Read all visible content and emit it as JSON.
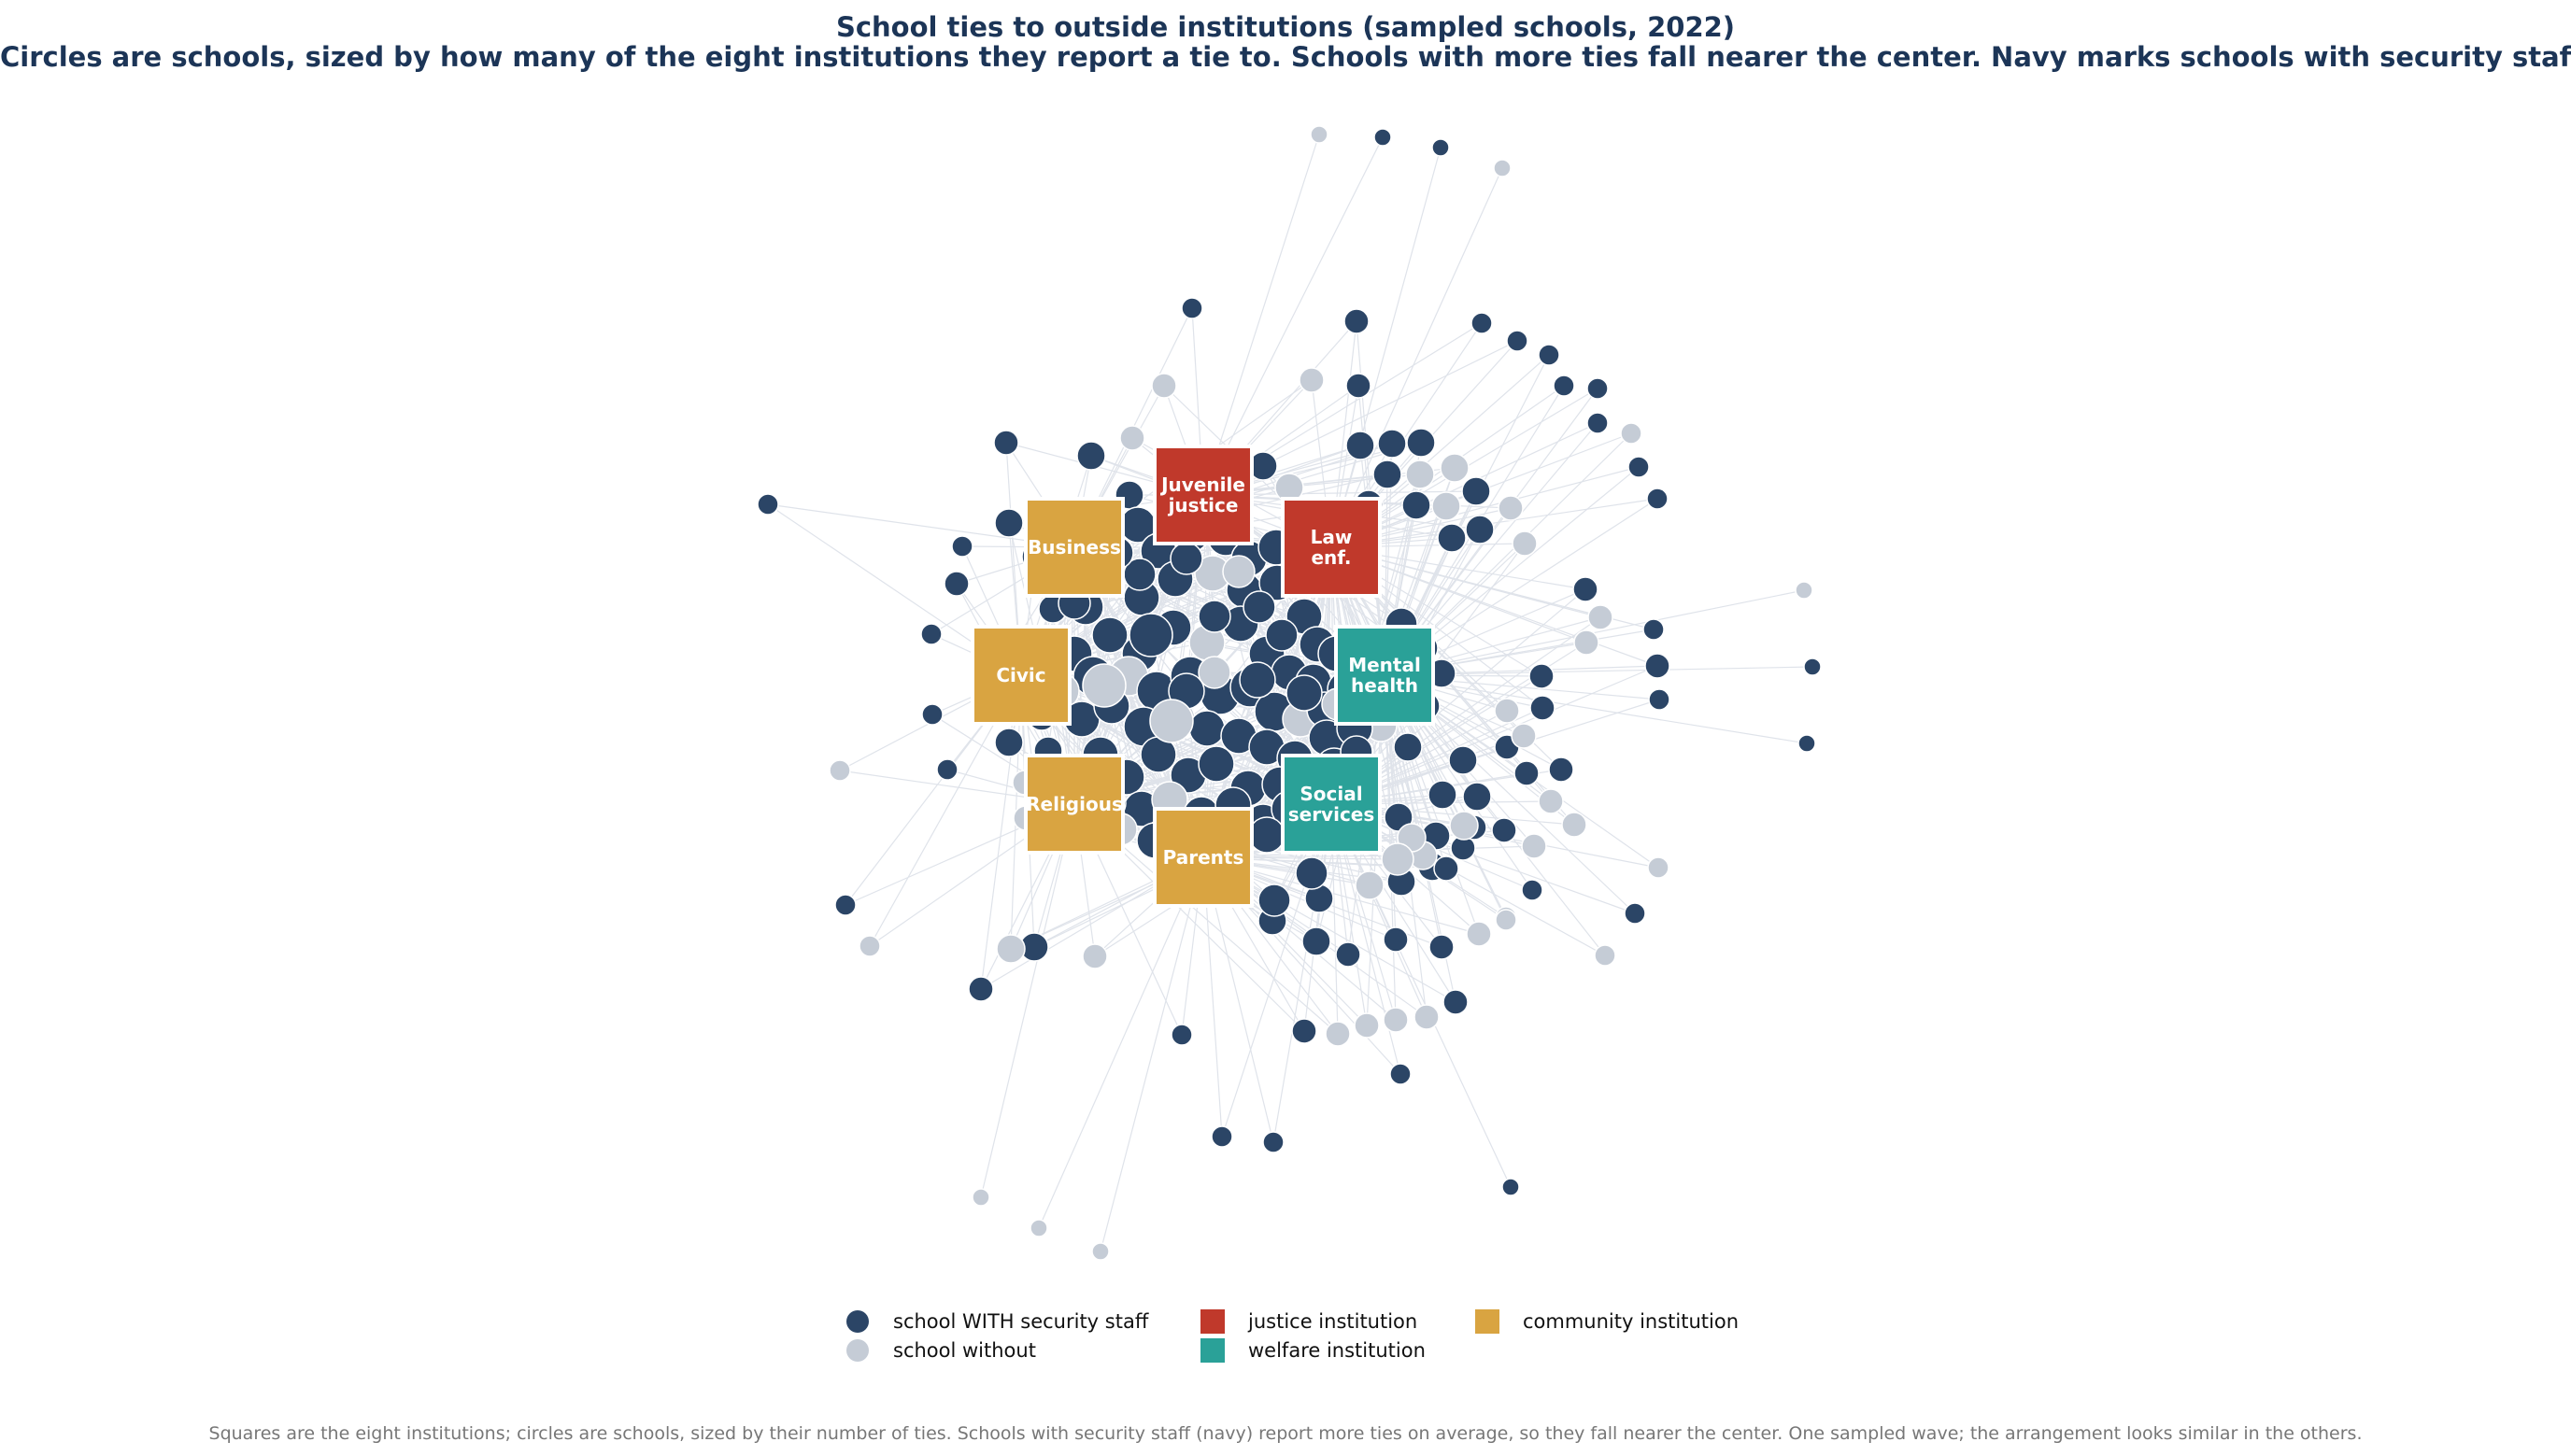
{
  "title": "School ties to outside institutions (sampled schools, 2022)",
  "subtitle": "Circles are schools, sized by how many of the eight institutions they report a tie to. Schools with more ties fall nearer the center. Navy marks schools with security staff.",
  "footnote": "Squares are the eight institutions; circles are schools, sized by their number of ties. Schools with security staff (navy) report more ties on average, so they fall nearer the center. One sampled wave; the arrangement looks similar in the others.",
  "colors": {
    "security": "#2b4566",
    "without": "#c5ccd6",
    "justice": "#c0392b",
    "welfare": "#2aa198",
    "community": "#d9a441",
    "edge": "#dfe3ea"
  },
  "institutions": [
    {
      "id": "juvenile",
      "label": "Juvenile justice",
      "label_lines": [
        "Juvenile",
        "justice"
      ],
      "type": "justice"
    },
    {
      "id": "law",
      "label": "Law enf.",
      "label_lines": [
        "Law",
        "enf."
      ],
      "type": "justice"
    },
    {
      "id": "business",
      "label": "Business",
      "label_lines": [
        "Business"
      ],
      "type": "community"
    },
    {
      "id": "civic",
      "label": "Civic",
      "label_lines": [
        "Civic"
      ],
      "type": "community"
    },
    {
      "id": "mental",
      "label": "Mental health",
      "label_lines": [
        "Mental",
        "health"
      ],
      "type": "welfare"
    },
    {
      "id": "religious",
      "label": "Religious",
      "label_lines": [
        "Religious"
      ],
      "type": "community"
    },
    {
      "id": "social",
      "label": "Social services",
      "label_lines": [
        "Social",
        "services"
      ],
      "type": "welfare"
    },
    {
      "id": "parents",
      "label": "Parents",
      "label_lines": [
        "Parents"
      ],
      "type": "community"
    }
  ],
  "legend": [
    {
      "label": "school WITH security staff",
      "shape": "circle",
      "color_key": "security"
    },
    {
      "label": "school without",
      "shape": "circle",
      "color_key": "without"
    },
    {
      "label": "justice institution",
      "shape": "square",
      "color_key": "justice"
    },
    {
      "label": "welfare institution",
      "shape": "square",
      "color_key": "welfare"
    },
    {
      "label": "community institution",
      "shape": "square",
      "color_key": "community"
    }
  ],
  "school_groups": {
    "security_staff": "school WITH security staff",
    "no_security_staff": "school without"
  },
  "tie_count_range": [
    1,
    8
  ]
}
